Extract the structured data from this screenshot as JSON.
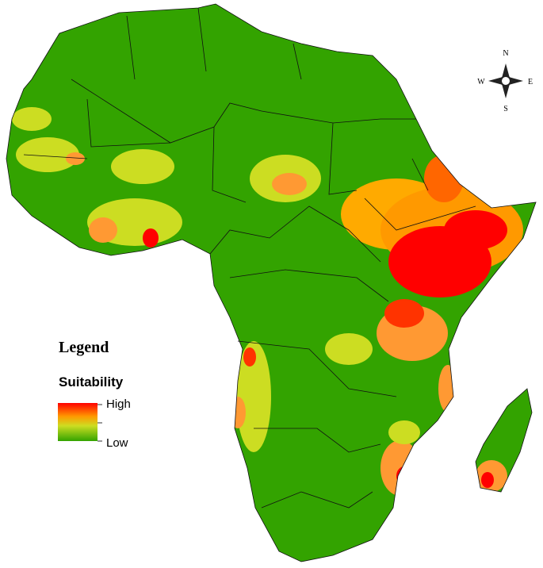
{
  "legend": {
    "title": "Legend",
    "subtitle": "Suitability",
    "high": "High",
    "low": "Low"
  },
  "compass": {
    "north": "N",
    "south": "S",
    "east": "E",
    "west": "W"
  }
}
